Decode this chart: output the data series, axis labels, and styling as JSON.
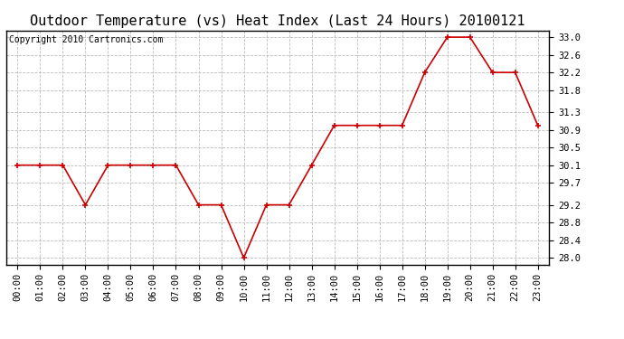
{
  "title": "Outdoor Temperature (vs) Heat Index (Last 24 Hours) 20100121",
  "copyright": "Copyright 2010 Cartronics.com",
  "x_labels": [
    "00:00",
    "01:00",
    "02:00",
    "03:00",
    "04:00",
    "05:00",
    "06:00",
    "07:00",
    "08:00",
    "09:00",
    "10:00",
    "11:00",
    "12:00",
    "13:00",
    "14:00",
    "15:00",
    "16:00",
    "17:00",
    "18:00",
    "19:00",
    "20:00",
    "21:00",
    "22:00",
    "23:00"
  ],
  "y_values": [
    30.1,
    30.1,
    30.1,
    29.2,
    30.1,
    30.1,
    30.1,
    30.1,
    29.2,
    29.2,
    28.0,
    29.2,
    29.2,
    30.1,
    31.0,
    31.0,
    31.0,
    31.0,
    32.2,
    33.0,
    33.0,
    32.2,
    32.2,
    31.0
  ],
  "line_color": "#cc0000",
  "marker_color": "#cc0000",
  "bg_color": "#ffffff",
  "plot_bg_color": "#ffffff",
  "grid_color": "#bbbbbb",
  "title_color": "#000000",
  "copyright_color": "#000000",
  "ylim_min": 27.85,
  "ylim_max": 33.15,
  "yticks": [
    28.0,
    28.4,
    28.8,
    29.2,
    29.7,
    30.1,
    30.5,
    30.9,
    31.3,
    31.8,
    32.2,
    32.6,
    33.0
  ],
  "title_fontsize": 11,
  "copyright_fontsize": 7,
  "tick_fontsize": 7.5
}
